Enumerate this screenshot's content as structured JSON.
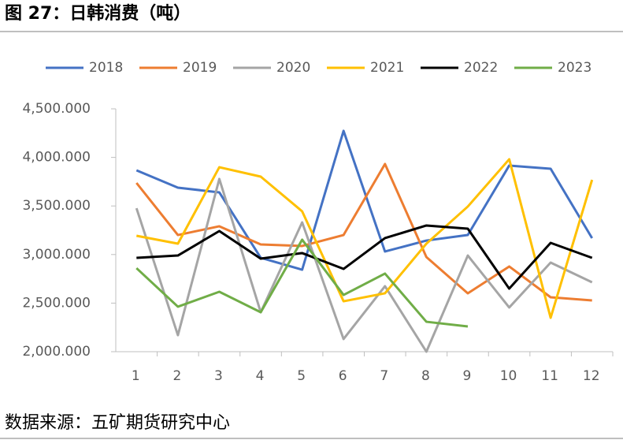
{
  "chart_data": {
    "type": "line",
    "title": "图 27：日韩消费（吨）",
    "source": "数据来源：五矿期货研究中心",
    "categories": [
      "1",
      "2",
      "3",
      "4",
      "5",
      "6",
      "7",
      "8",
      "9",
      "10",
      "11",
      "12"
    ],
    "ylim": [
      2000,
      4500
    ],
    "yticks": [
      {
        "value": 2000,
        "label": "2,000.000"
      },
      {
        "value": 2500,
        "label": "2,500.000"
      },
      {
        "value": 3000,
        "label": "3,000.000"
      },
      {
        "value": 3500,
        "label": "3,500.000"
      },
      {
        "value": 4000,
        "label": "4,000.000"
      },
      {
        "value": 4500,
        "label": "4,500.000"
      }
    ],
    "grid": false,
    "legend": "top",
    "series": [
      {
        "name": "2018",
        "color": "#4472c4",
        "values": [
          3867,
          3688,
          3640,
          2966,
          2844,
          4273,
          3031,
          3144,
          3201,
          3916,
          3883,
          3169
        ]
      },
      {
        "name": "2019",
        "color": "#ed7d31",
        "values": [
          3737,
          3201,
          3291,
          3104,
          3088,
          3201,
          3932,
          2974,
          2601,
          2877,
          2560,
          2528
        ]
      },
      {
        "name": "2020",
        "color": "#a5a5a5",
        "values": [
          3477,
          2170,
          3778,
          2406,
          3331,
          2130,
          2674,
          2000,
          2990,
          2455,
          2917,
          2714
        ]
      },
      {
        "name": "2021",
        "color": "#ffc000",
        "values": [
          3193,
          3112,
          3899,
          3802,
          3445,
          2519,
          2601,
          3112,
          3494,
          3981,
          2349,
          3769
        ]
      },
      {
        "name": "2022",
        "color": "#000000",
        "values": [
          2966,
          2990,
          3242,
          2958,
          3015,
          2852,
          3169,
          3299,
          3266,
          2649,
          3120,
          2966
        ]
      },
      {
        "name": "2023",
        "color": "#70ad47",
        "values": [
          2860,
          2463,
          2617,
          2406,
          3153,
          2584,
          2804,
          2308,
          2260,
          null,
          null,
          null
        ]
      }
    ]
  }
}
